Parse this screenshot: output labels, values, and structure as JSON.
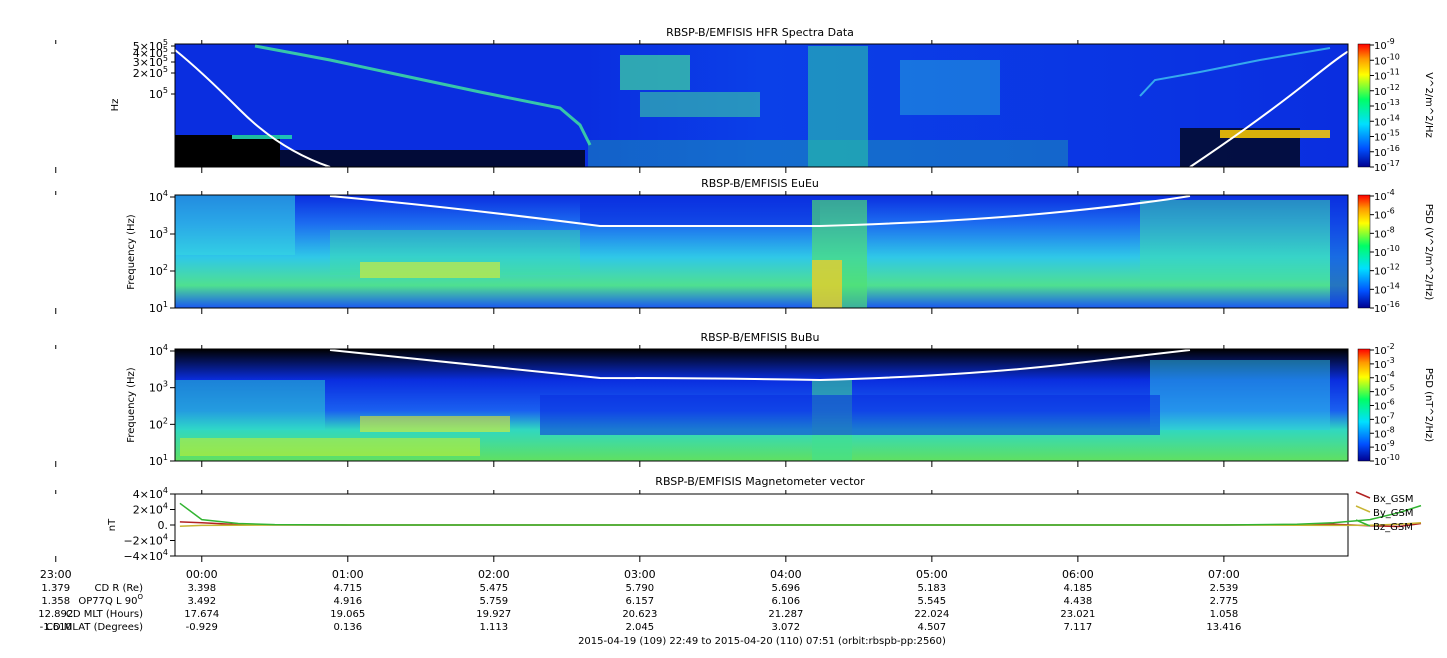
{
  "footer": "2015-04-19 (109) 22:49 to 2015-04-20 (110) 07:51 (orbit:rbspb-pp:2560)",
  "time_ticks": [
    "23:00",
    "00:00",
    "01:00",
    "02:00",
    "03:00",
    "04:00",
    "05:00",
    "06:00",
    "07:00"
  ],
  "ephemeris": {
    "labels": [
      "CD R (Re)",
      "OP77Q L 90",
      "CD MLT (Hours)",
      "CD MLAT (Degrees)"
    ],
    "label_superscript": "O",
    "rows": [
      [
        "1.379",
        "3.398",
        "4.715",
        "5.475",
        "5.790",
        "5.696",
        "5.183",
        "4.185",
        "2.539"
      ],
      [
        "1.358",
        "3.492",
        "4.916",
        "5.759",
        "6.157",
        "6.106",
        "5.545",
        "4.438",
        "2.775"
      ],
      [
        "12.892",
        "17.674",
        "19.065",
        "19.927",
        "20.623",
        "21.287",
        "22.024",
        "23.021",
        "1.058"
      ],
      [
        "-1.610",
        "-0.929",
        "0.136",
        "1.113",
        "2.045",
        "3.072",
        "4.507",
        "7.117",
        "13.416"
      ]
    ]
  },
  "colors": {
    "spectrogram_bg": "#0a2ee0",
    "spectrogram_dark": "#000000",
    "trace": "#ffffff",
    "bx": "#b22222",
    "by": "#c8b432",
    "bz": "#32b432"
  },
  "chart_data": [
    {
      "type": "heatmap",
      "title": "RBSP-B/EMFISIS  HFR Spectra Data",
      "ylabel": "Hz",
      "yticks": [
        "5×10",
        "4×10",
        "3×10",
        "2×10",
        "10"
      ],
      "ytick_exp": "5",
      "cbar_label": "V^2/m^2/Hz",
      "cbar_ticks_exp": [
        "-9",
        "-10",
        "-11",
        "-12",
        "-13",
        "-14",
        "-15",
        "-16",
        "-17"
      ],
      "cbar_base": "10"
    },
    {
      "type": "heatmap",
      "title": "RBSP-B/EMFISIS  EuEu",
      "ylabel": "Frequency (Hz)",
      "yticks_exp": [
        "4",
        "3",
        "2",
        "1"
      ],
      "ytick_base": "10",
      "cbar_label": "PSD (V^2/m^2/Hz)",
      "cbar_ticks_exp": [
        "-4",
        "-6",
        "-8",
        "-10",
        "-12",
        "-14",
        "-16"
      ],
      "cbar_base": "10"
    },
    {
      "type": "heatmap",
      "title": "RBSP-B/EMFISIS  BuBu",
      "ylabel": "Frequency (Hz)",
      "yticks_exp": [
        "4",
        "3",
        "2",
        "1"
      ],
      "ytick_base": "10",
      "cbar_label": "PSD (nT^2/Hz)",
      "cbar_ticks_exp": [
        "-2",
        "-3",
        "-4",
        "-5",
        "-6",
        "-7",
        "-8",
        "-9",
        "-10"
      ],
      "cbar_base": "10"
    },
    {
      "type": "line",
      "title": "RBSP-B/EMFISIS  Magnetometer vector",
      "ylabel": "nT",
      "yticks": [
        "4×10",
        "2×10",
        "0.",
        "−2×10",
        "−4×10"
      ],
      "ytick_exp": "4",
      "ylim": [
        -40000,
        40000
      ],
      "x_hours": [
        -0.15,
        0.0,
        0.25,
        0.5,
        1.0,
        2.0,
        3.0,
        4.0,
        5.0,
        6.0,
        7.0,
        7.5,
        7.75,
        8.0,
        8.2,
        8.35
      ],
      "series": [
        {
          "name": "Bx_GSM",
          "values": [
            4000,
            3000,
            500,
            100,
            0,
            0,
            0,
            0,
            0,
            0,
            0,
            500,
            1000,
            -1000,
            -2000,
            2000
          ]
        },
        {
          "name": "By_GSM",
          "values": [
            -1500,
            -500,
            -200,
            0,
            0,
            0,
            0,
            0,
            0,
            0,
            0,
            -200,
            -500,
            -300,
            1000,
            3000
          ]
        },
        {
          "name": "Bz_GSM",
          "values": [
            28000,
            7000,
            2000,
            500,
            0,
            0,
            0,
            0,
            0,
            0,
            0,
            1000,
            3000,
            7000,
            16000,
            25000
          ]
        }
      ]
    }
  ]
}
